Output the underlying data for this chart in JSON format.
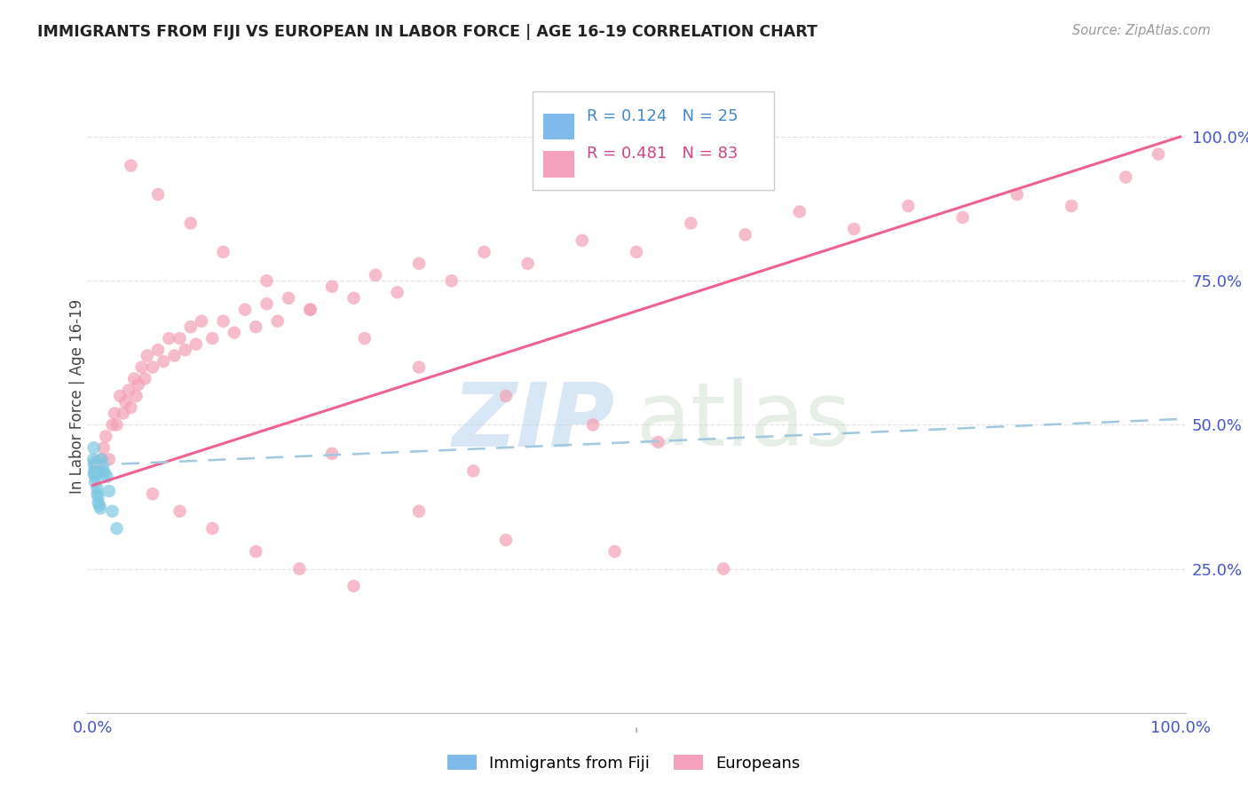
{
  "title": "IMMIGRANTS FROM FIJI VS EUROPEAN IN LABOR FORCE | AGE 16-19 CORRELATION CHART",
  "source_text": "Source: ZipAtlas.com",
  "ylabel": "In Labor Force | Age 16-19",
  "ytick_labels": [
    "25.0%",
    "50.0%",
    "75.0%",
    "100.0%"
  ],
  "ytick_values": [
    0.25,
    0.5,
    0.75,
    1.0
  ],
  "fiji_color": "#7ec8e3",
  "euro_color": "#f4a0b5",
  "fiji_line_color": "#a0c8e0",
  "euro_line_color": "#f06090",
  "fiji_R": 0.124,
  "fiji_N": 25,
  "euro_R": 0.481,
  "euro_N": 83,
  "fiji_legend_color": "#6aaee8",
  "euro_legend_color": "#f48fb1",
  "legend_text_fiji_color": "#4488cc",
  "legend_text_euro_color": "#cc4488",
  "axis_label_color": "#4455cc",
  "title_color": "#222222",
  "source_color": "#999999",
  "grid_color": "#dddddd",
  "watermark_zip_color": "#b8d4ee",
  "watermark_atlas_color": "#c8dcc8",
  "fiji_scatter_x": [
    0.0005,
    0.0008,
    0.001,
    0.001,
    0.0015,
    0.002,
    0.002,
    0.002,
    0.003,
    0.003,
    0.003,
    0.004,
    0.004,
    0.005,
    0.005,
    0.006,
    0.007,
    0.008,
    0.009,
    0.01,
    0.011,
    0.013,
    0.015,
    0.018,
    0.022
  ],
  "fiji_scatter_y": [
    0.44,
    0.46,
    0.43,
    0.415,
    0.42,
    0.435,
    0.41,
    0.4,
    0.43,
    0.42,
    0.415,
    0.39,
    0.38,
    0.375,
    0.365,
    0.36,
    0.355,
    0.44,
    0.43,
    0.42,
    0.415,
    0.41,
    0.385,
    0.35,
    0.32
  ],
  "euro_scatter_x": [
    0.005,
    0.008,
    0.01,
    0.012,
    0.015,
    0.018,
    0.02,
    0.022,
    0.025,
    0.028,
    0.03,
    0.033,
    0.035,
    0.038,
    0.04,
    0.042,
    0.045,
    0.048,
    0.05,
    0.055,
    0.06,
    0.065,
    0.07,
    0.075,
    0.08,
    0.085,
    0.09,
    0.095,
    0.1,
    0.11,
    0.12,
    0.13,
    0.14,
    0.15,
    0.16,
    0.17,
    0.18,
    0.2,
    0.22,
    0.24,
    0.26,
    0.28,
    0.3,
    0.33,
    0.36,
    0.4,
    0.45,
    0.5,
    0.55,
    0.6,
    0.65,
    0.7,
    0.75,
    0.8,
    0.85,
    0.9,
    0.95,
    0.98,
    0.035,
    0.06,
    0.09,
    0.12,
    0.16,
    0.2,
    0.25,
    0.3,
    0.38,
    0.46,
    0.055,
    0.08,
    0.11,
    0.15,
    0.19,
    0.24,
    0.3,
    0.38,
    0.48,
    0.58,
    0.22,
    0.35,
    0.52
  ],
  "euro_scatter_y": [
    0.42,
    0.44,
    0.46,
    0.48,
    0.44,
    0.5,
    0.52,
    0.5,
    0.55,
    0.52,
    0.54,
    0.56,
    0.53,
    0.58,
    0.55,
    0.57,
    0.6,
    0.58,
    0.62,
    0.6,
    0.63,
    0.61,
    0.65,
    0.62,
    0.65,
    0.63,
    0.67,
    0.64,
    0.68,
    0.65,
    0.68,
    0.66,
    0.7,
    0.67,
    0.71,
    0.68,
    0.72,
    0.7,
    0.74,
    0.72,
    0.76,
    0.73,
    0.78,
    0.75,
    0.8,
    0.78,
    0.82,
    0.8,
    0.85,
    0.83,
    0.87,
    0.84,
    0.88,
    0.86,
    0.9,
    0.88,
    0.93,
    0.97,
    0.95,
    0.9,
    0.85,
    0.8,
    0.75,
    0.7,
    0.65,
    0.6,
    0.55,
    0.5,
    0.38,
    0.35,
    0.32,
    0.28,
    0.25,
    0.22,
    0.35,
    0.3,
    0.28,
    0.25,
    0.45,
    0.42,
    0.47
  ]
}
